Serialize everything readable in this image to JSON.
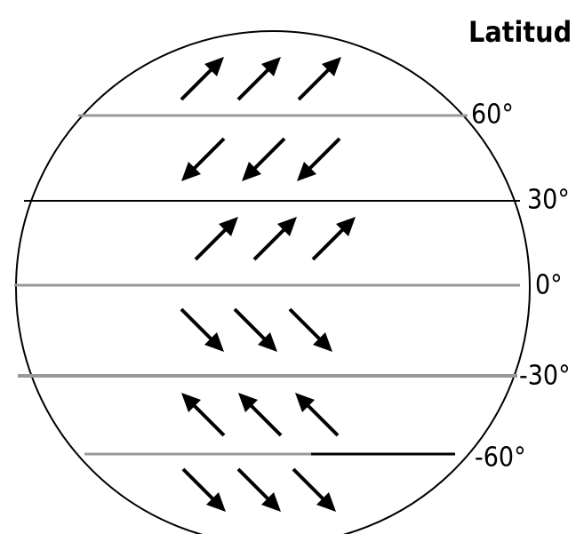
{
  "title": "Latitud",
  "latitudes": [
    "60°",
    "30°",
    "0°",
    "-30°",
    "-60°"
  ]
}
